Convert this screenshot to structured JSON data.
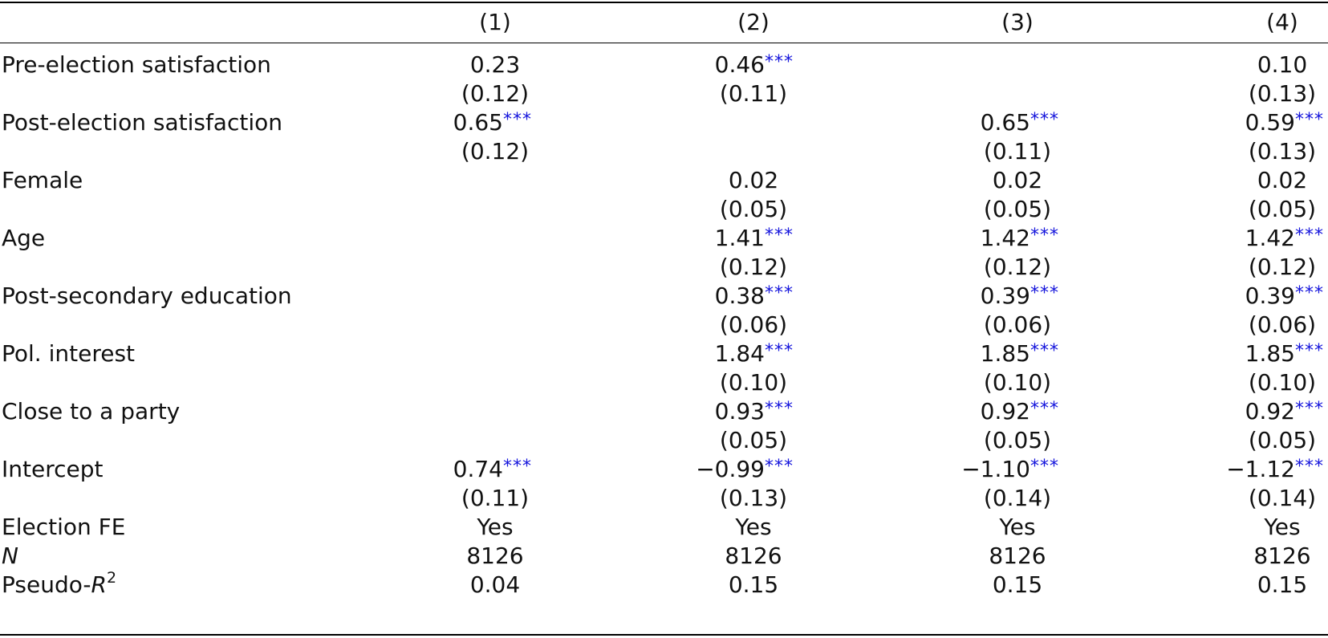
{
  "table": {
    "headers": [
      "",
      "(1)",
      "(2)",
      "(3)",
      "(4)"
    ],
    "rows": [
      {
        "label": "Pre-election satisfaction",
        "cells": [
          {
            "v": "0.23",
            "s": ""
          },
          {
            "v": "0.46",
            "s": "***"
          },
          {
            "v": "",
            "s": ""
          },
          {
            "v": "0.10",
            "s": ""
          }
        ]
      },
      {
        "label": "",
        "cells": [
          {
            "v": "(0.12)",
            "s": ""
          },
          {
            "v": "(0.11)",
            "s": ""
          },
          {
            "v": "",
            "s": ""
          },
          {
            "v": "(0.13)",
            "s": ""
          }
        ]
      },
      {
        "label": "Post-election satisfaction",
        "cells": [
          {
            "v": "0.65",
            "s": "***"
          },
          {
            "v": "",
            "s": ""
          },
          {
            "v": "0.65",
            "s": "***"
          },
          {
            "v": "0.59",
            "s": "***"
          }
        ]
      },
      {
        "label": "",
        "cells": [
          {
            "v": "(0.12)",
            "s": ""
          },
          {
            "v": "",
            "s": ""
          },
          {
            "v": "(0.11)",
            "s": ""
          },
          {
            "v": "(0.13)",
            "s": ""
          }
        ]
      },
      {
        "label": "Female",
        "cells": [
          {
            "v": "",
            "s": ""
          },
          {
            "v": "0.02",
            "s": ""
          },
          {
            "v": "0.02",
            "s": ""
          },
          {
            "v": "0.02",
            "s": ""
          }
        ]
      },
      {
        "label": "",
        "cells": [
          {
            "v": "",
            "s": ""
          },
          {
            "v": "(0.05)",
            "s": ""
          },
          {
            "v": "(0.05)",
            "s": ""
          },
          {
            "v": "(0.05)",
            "s": ""
          }
        ]
      },
      {
        "label": "Age",
        "cells": [
          {
            "v": "",
            "s": ""
          },
          {
            "v": "1.41",
            "s": "***"
          },
          {
            "v": "1.42",
            "s": "***"
          },
          {
            "v": "1.42",
            "s": "***"
          }
        ]
      },
      {
        "label": "",
        "cells": [
          {
            "v": "",
            "s": ""
          },
          {
            "v": "(0.12)",
            "s": ""
          },
          {
            "v": "(0.12)",
            "s": ""
          },
          {
            "v": "(0.12)",
            "s": ""
          }
        ]
      },
      {
        "label": "Post-secondary education",
        "cells": [
          {
            "v": "",
            "s": ""
          },
          {
            "v": "0.38",
            "s": "***"
          },
          {
            "v": "0.39",
            "s": "***"
          },
          {
            "v": "0.39",
            "s": "***"
          }
        ]
      },
      {
        "label": "",
        "cells": [
          {
            "v": "",
            "s": ""
          },
          {
            "v": "(0.06)",
            "s": ""
          },
          {
            "v": "(0.06)",
            "s": ""
          },
          {
            "v": "(0.06)",
            "s": ""
          }
        ]
      },
      {
        "label": "Pol. interest",
        "cells": [
          {
            "v": "",
            "s": ""
          },
          {
            "v": "1.84",
            "s": "***"
          },
          {
            "v": "1.85",
            "s": "***"
          },
          {
            "v": "1.85",
            "s": "***"
          }
        ]
      },
      {
        "label": "",
        "cells": [
          {
            "v": "",
            "s": ""
          },
          {
            "v": "(0.10)",
            "s": ""
          },
          {
            "v": "(0.10)",
            "s": ""
          },
          {
            "v": "(0.10)",
            "s": ""
          }
        ]
      },
      {
        "label": "Close to a party",
        "cells": [
          {
            "v": "",
            "s": ""
          },
          {
            "v": "0.93",
            "s": "***"
          },
          {
            "v": "0.92",
            "s": "***"
          },
          {
            "v": "0.92",
            "s": "***"
          }
        ]
      },
      {
        "label": "",
        "cells": [
          {
            "v": "",
            "s": ""
          },
          {
            "v": "(0.05)",
            "s": ""
          },
          {
            "v": "(0.05)",
            "s": ""
          },
          {
            "v": "(0.05)",
            "s": ""
          }
        ]
      },
      {
        "label": "Intercept",
        "cells": [
          {
            "v": "0.74",
            "s": "***"
          },
          {
            "v": "−0.99",
            "s": "***"
          },
          {
            "v": "−1.10",
            "s": "***"
          },
          {
            "v": "−1.12",
            "s": "***"
          }
        ]
      },
      {
        "label": "",
        "cells": [
          {
            "v": "(0.11)",
            "s": ""
          },
          {
            "v": "(0.13)",
            "s": ""
          },
          {
            "v": "(0.14)",
            "s": ""
          },
          {
            "v": "(0.14)",
            "s": ""
          }
        ]
      },
      {
        "label": "Election FE",
        "cells": [
          {
            "v": "Yes",
            "s": ""
          },
          {
            "v": "Yes",
            "s": ""
          },
          {
            "v": "Yes",
            "s": ""
          },
          {
            "v": "Yes",
            "s": ""
          }
        ]
      }
    ],
    "n_row": {
      "label": "N",
      "cells": [
        "8126",
        "8126",
        "8126",
        "8126"
      ]
    },
    "r2_row": {
      "label_prefix": "Pseudo-",
      "label_var": "R",
      "label_sup": "2",
      "cells": [
        "0.04",
        "0.15",
        "0.15",
        "0.15"
      ]
    }
  },
  "colors": {
    "stars": "#1414dc",
    "text": "#111111"
  }
}
